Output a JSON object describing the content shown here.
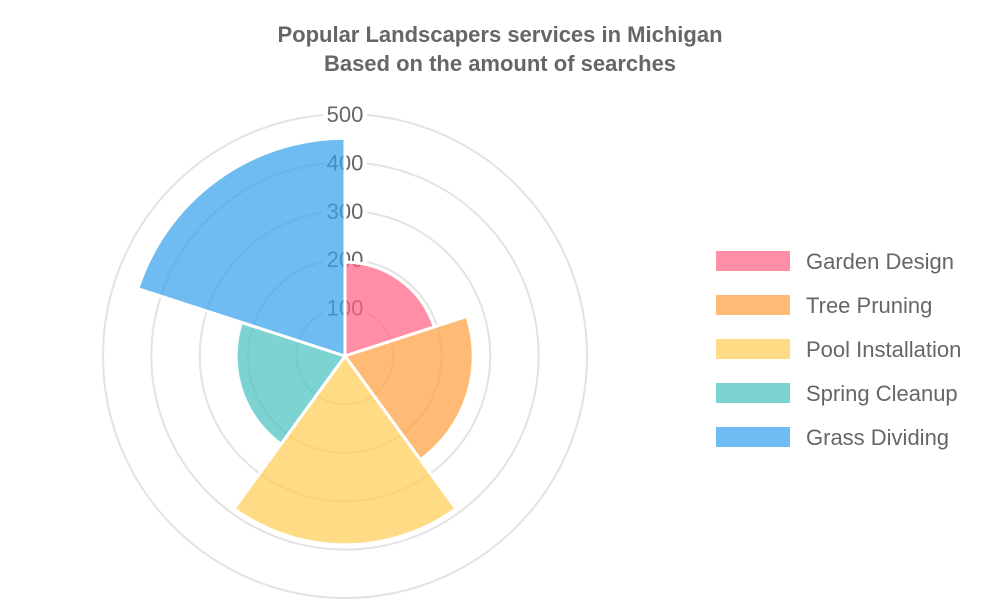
{
  "chart_data": {
    "type": "polarArea",
    "title": [
      "Popular Landscapers services in Michigan",
      "Based on the amount of searches"
    ],
    "categories": [
      "Garden Design",
      "Tree Pruning",
      "Pool Installation",
      "Spring Cleanup",
      "Grass Dividing"
    ],
    "values": [
      194,
      265,
      390,
      225,
      450
    ],
    "colors": [
      "#ff6384",
      "#ff9f40",
      "#ffcd56",
      "#4bc0c0",
      "#36a2eb"
    ],
    "ticks": [
      100,
      200,
      300,
      400,
      500
    ],
    "rmax": 500,
    "legend_position": "right",
    "grid": true
  }
}
